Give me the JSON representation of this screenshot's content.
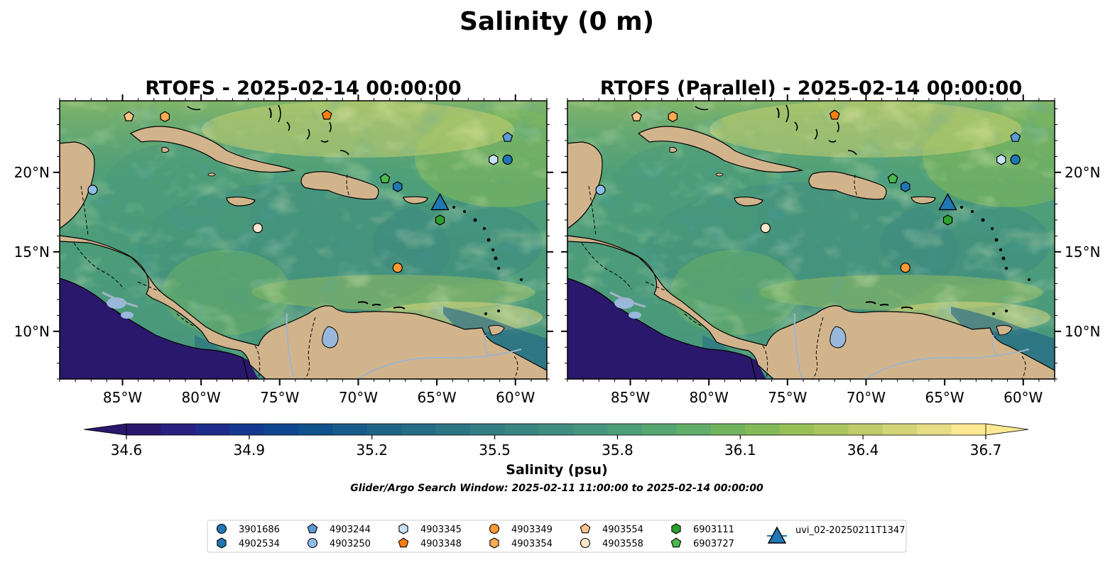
{
  "figure": {
    "suptitle": "Salinity (0 m)",
    "search_window": "Glider/Argo Search Window: 2025-02-11 11:00:00 to 2025-02-14 00:00:00"
  },
  "panels": [
    {
      "title": "RTOFS - 2025-02-14 00:00:00",
      "lat_tick_side": "left",
      "model": "rtofs"
    },
    {
      "title": "RTOFS (Parallel) - 2025-02-14 00:00:00",
      "lat_tick_side": "right",
      "model": "rtofs-parallel"
    }
  ],
  "map_extent": {
    "lon": [
      -89.0,
      -58.0
    ],
    "lat": [
      7.0,
      24.5
    ]
  },
  "lon_ticks": [
    {
      "value": -85,
      "label": "85°W"
    },
    {
      "value": -80,
      "label": "80°W"
    },
    {
      "value": -75,
      "label": "75°W"
    },
    {
      "value": -70,
      "label": "70°W"
    },
    {
      "value": -65,
      "label": "65°W"
    },
    {
      "value": -60,
      "label": "60°W"
    }
  ],
  "lat_ticks": [
    {
      "value": 10,
      "label": "10°N"
    },
    {
      "value": 15,
      "label": "15°N"
    },
    {
      "value": 20,
      "label": "20°N"
    }
  ],
  "colorbar": {
    "label": "Salinity (psu)",
    "min": 34.6,
    "max": 36.7,
    "ticks": [
      "34.6",
      "34.9",
      "35.2",
      "35.5",
      "35.8",
      "36.1",
      "36.4",
      "36.7"
    ],
    "colormap": "haline",
    "colors": [
      "#2a186c",
      "#29207f",
      "#1f2b8a",
      "#14388f",
      "#0f468f",
      "#0f518b",
      "#175b88",
      "#1f6486",
      "#266c85",
      "#2d7584",
      "#337d83",
      "#398582",
      "#3f8d80",
      "#45957d",
      "#4c9e78",
      "#56a671",
      "#62ad69",
      "#72b45e",
      "#83ba57",
      "#97c057",
      "#abc65e",
      "#c0cc6a",
      "#d4d478",
      "#e6dc86",
      "#fde992"
    ],
    "extend": "both"
  },
  "colors": {
    "land": "#d2b48c",
    "lakes": "#9ab8dc",
    "rivers": "#a0b4c8",
    "pacific": "#2a186c"
  },
  "instruments": [
    {
      "id": "3901686",
      "marker": "circle",
      "color": "#1f77b4",
      "lon": -60.5,
      "lat": 20.8
    },
    {
      "id": "4902534",
      "marker": "hexagon",
      "color": "#1f77b4",
      "lon": -67.5,
      "lat": 19.1
    },
    {
      "id": "4903244",
      "marker": "pentagon",
      "color": "#5b9bd5",
      "lon": -60.5,
      "lat": 22.2
    },
    {
      "id": "4903250",
      "marker": "circle",
      "color": "#8fbce6",
      "lon": -86.9,
      "lat": 18.9
    },
    {
      "id": "4903345",
      "marker": "hexagon",
      "color": "#c6e1f5",
      "lon": -61.4,
      "lat": 20.8
    },
    {
      "id": "4903348",
      "marker": "pentagon",
      "color": "#ff7f0e",
      "lon": -72.0,
      "lat": 23.6
    },
    {
      "id": "4903349",
      "marker": "circle",
      "color": "#ff9933",
      "lon": -67.5,
      "lat": 14.0
    },
    {
      "id": "4903354",
      "marker": "hexagon",
      "color": "#ffaa55",
      "lon": -82.3,
      "lat": 23.5
    },
    {
      "id": "4903554",
      "marker": "pentagon",
      "color": "#ffc48a",
      "lon": -84.6,
      "lat": 23.5
    },
    {
      "id": "4903558",
      "marker": "circle",
      "color": "#ffe6cc",
      "lon": -76.4,
      "lat": 16.5
    },
    {
      "id": "6903111",
      "marker": "hexagon",
      "color": "#2ca02c",
      "lon": -64.8,
      "lat": 17.0
    },
    {
      "id": "6903727",
      "marker": "pentagon",
      "color": "#4cb84c",
      "lon": -68.3,
      "lat": 19.6
    },
    {
      "id": "uvi_02-20250211T1347",
      "marker": "triangle",
      "color": "#1f77b4",
      "lon": -64.8,
      "lat": 18.1
    }
  ]
}
